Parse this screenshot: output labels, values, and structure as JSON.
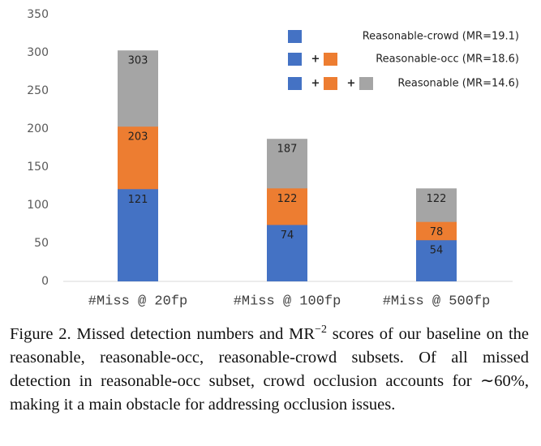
{
  "chart_data": {
    "type": "bar",
    "categories": [
      "#Miss @ 20fp",
      "#Miss @ 100fp",
      "#Miss @ 500fp"
    ],
    "series": [
      {
        "name": "Reasonable-crowd (MR=19.1)",
        "color": "#4472c4",
        "values": [
          121,
          74,
          54
        ]
      },
      {
        "name": "Reasonable-occ (MR=18.6)",
        "color": "#ed7d31",
        "values": [
          203,
          122,
          78
        ]
      },
      {
        "name": "Reasonable (MR=14.6)",
        "color": "#a5a5a5",
        "values": [
          303,
          187,
          122
        ]
      }
    ],
    "legend_separator": "+",
    "ylim": [
      0,
      350
    ],
    "yticks": [
      0,
      50,
      100,
      150,
      200,
      250,
      300,
      350
    ],
    "grid": false,
    "legend": "upper right"
  },
  "caption": {
    "before": "Figure 2. Missed detection numbers and MR",
    "sup": "−2",
    "after": " scores of our baseline on the reasonable, reasonable-occ, reasonable-crowd subsets. Of all missed detection in reasonable-occ subset, crowd occlusion accounts for ∼60%, making it a main obstacle for addressing occlusion issues."
  }
}
